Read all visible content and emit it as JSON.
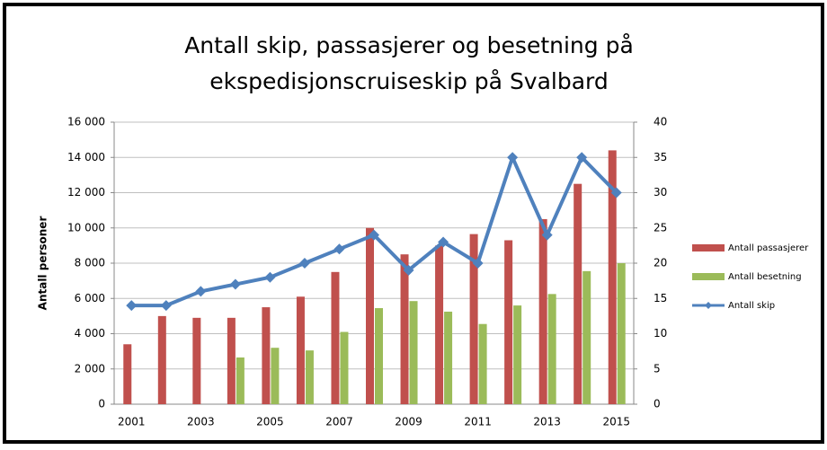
{
  "chart_data": {
    "type": "bar",
    "title": [
      "Antall skip, passasjerer og besetning på",
      "ekspedisjonscruiseskip på Svalbard"
    ],
    "y_label": "Antall personer",
    "categories": [
      "2001",
      null,
      "2003",
      null,
      "2005",
      null,
      "2007",
      null,
      "2009",
      null,
      "2011",
      null,
      "2013",
      null,
      "2015"
    ],
    "series": [
      {
        "name": "Antall passasjerer",
        "color": "#c0504d",
        "type": "bar",
        "values": [
          3400,
          5000,
          4900,
          4900,
          5500,
          6100,
          7500,
          10000,
          8500,
          9000,
          9650,
          9300,
          10500,
          12500,
          14400
        ]
      },
      {
        "name": "Antall besetning",
        "color": "#9bbb59",
        "type": "bar",
        "values": [
          null,
          null,
          null,
          2650,
          3200,
          3050,
          4100,
          5450,
          5850,
          5250,
          4550,
          5600,
          6250,
          7550,
          8000
        ]
      },
      {
        "name": "Antall skip",
        "color": "#4f81bd",
        "type": "line",
        "axis": "y2",
        "values": [
          14,
          14,
          16,
          17,
          18,
          20,
          22,
          24,
          19,
          23,
          20,
          35,
          24,
          35,
          30
        ]
      }
    ],
    "ylim": [
      0,
      16000
    ],
    "yticks": [
      0,
      {
        "value": 2000,
        "label": "2 000"
      },
      {
        "value": 4000,
        "label": "4 000"
      },
      {
        "value": 6000,
        "label": "6 000"
      },
      {
        "value": 8000,
        "label": "8 000"
      },
      {
        "value": 10000,
        "label": "10 000"
      },
      {
        "value": 12000,
        "label": "12 000"
      },
      {
        "value": 14000,
        "label": "14 000"
      },
      {
        "value": 16000,
        "label": "16 000"
      }
    ],
    "y2lim": [
      0,
      40
    ],
    "y2ticks": [
      0,
      5,
      10,
      15,
      20,
      25,
      30,
      35,
      40
    ],
    "grid": true,
    "legend": "right"
  }
}
